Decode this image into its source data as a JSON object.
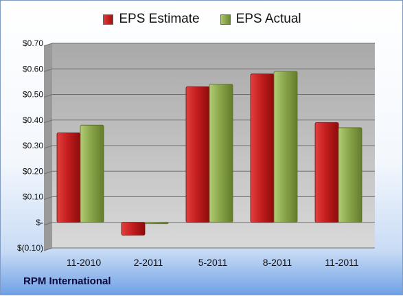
{
  "legend": {
    "estimate_label": "EPS Estimate",
    "actual_label": "EPS Actual"
  },
  "company": "RPM International",
  "colors": {
    "estimate": "#c41e1e",
    "actual": "#8aa64a",
    "plot_bg": "#bfbfbf"
  },
  "chart_data": {
    "type": "bar",
    "categories": [
      "11-2010",
      "2-2011",
      "5-2011",
      "8-2011",
      "11-2011"
    ],
    "series": [
      {
        "name": "EPS Estimate",
        "values": [
          0.35,
          -0.05,
          0.53,
          0.58,
          0.39
        ]
      },
      {
        "name": "EPS Actual",
        "values": [
          0.38,
          0.0,
          0.54,
          0.59,
          0.37
        ]
      }
    ],
    "ylim": [
      -0.1,
      0.7
    ],
    "yticks": [
      -0.1,
      0.0,
      0.1,
      0.2,
      0.3,
      0.4,
      0.5,
      0.6,
      0.7
    ],
    "ytick_labels": [
      "$(0.10)",
      "$-",
      "$0.10",
      "$0.20",
      "$0.30",
      "$0.40",
      "$0.50",
      "$0.60",
      "$0.70"
    ],
    "grid": true,
    "legend_position": "top"
  }
}
